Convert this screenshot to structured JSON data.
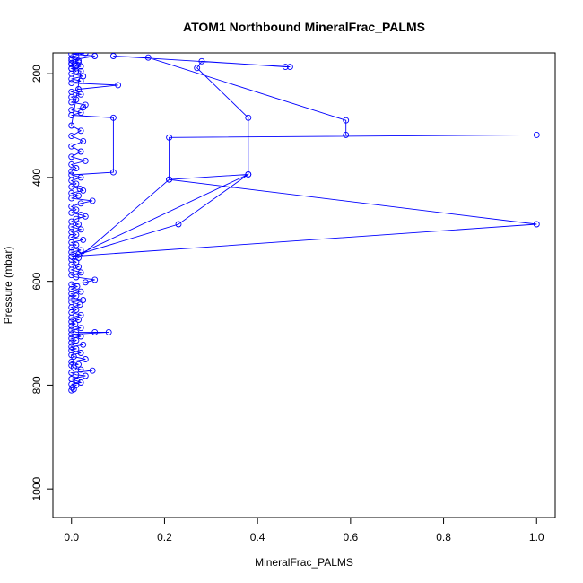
{
  "chart_data": {
    "type": "line",
    "title": "ATOM1 Northbound MineralFrac_PALMS",
    "xlabel": "MineralFrac_PALMS",
    "ylabel": "Pressure (mbar)",
    "xlim": [
      -0.04,
      1.04
    ],
    "ylim": [
      1055,
      160
    ],
    "y_reversed": true,
    "x_ticks": [
      0.0,
      0.2,
      0.4,
      0.6,
      0.8,
      1.0
    ],
    "x_tick_labels": [
      "0.0",
      "0.2",
      "0.4",
      "0.6",
      "0.8",
      "1.0"
    ],
    "y_ticks": [
      200,
      400,
      600,
      800,
      1000
    ],
    "y_tick_labels": [
      "200",
      "400",
      "600",
      "800",
      "1000"
    ],
    "grid": false,
    "marker": "open-circle",
    "color": "#0000ff",
    "series": [
      {
        "points": [
          [
            0.0,
            810
          ],
          [
            0.005,
            808
          ],
          [
            0.002,
            805
          ],
          [
            0.01,
            800
          ],
          [
            0.0,
            798
          ],
          [
            0.02,
            795
          ],
          [
            0.012,
            792
          ],
          [
            0.0,
            788
          ],
          [
            0.03,
            782
          ],
          [
            0.01,
            780
          ],
          [
            0.0,
            776
          ],
          [
            0.045,
            772
          ],
          [
            0.02,
            770
          ],
          [
            0.005,
            766
          ],
          [
            0.0,
            762
          ],
          [
            0.015,
            760
          ],
          [
            0.0,
            755
          ],
          [
            0.03,
            750
          ],
          [
            0.005,
            745
          ],
          [
            0.0,
            742
          ],
          [
            0.02,
            738
          ],
          [
            0.0,
            733
          ],
          [
            0.01,
            730
          ],
          [
            0.0,
            726
          ],
          [
            0.025,
            722
          ],
          [
            0.0,
            718
          ],
          [
            0.01,
            714
          ],
          [
            0.0,
            710
          ],
          [
            0.02,
            706
          ],
          [
            0.0,
            702
          ],
          [
            0.08,
            698
          ],
          [
            0.05,
            698
          ],
          [
            0.01,
            698
          ],
          [
            0.0,
            694
          ],
          [
            0.02,
            690
          ],
          [
            0.0,
            686
          ],
          [
            0.008,
            682
          ],
          [
            0.0,
            678
          ],
          [
            0.015,
            674
          ],
          [
            0.0,
            670
          ],
          [
            0.02,
            665
          ],
          [
            0.0,
            660
          ],
          [
            0.01,
            655
          ],
          [
            0.0,
            650
          ],
          [
            0.018,
            645
          ],
          [
            0.0,
            640
          ],
          [
            0.025,
            636
          ],
          [
            0.0,
            632
          ],
          [
            0.01,
            628
          ],
          [
            0.0,
            624
          ],
          [
            0.02,
            620
          ],
          [
            0.0,
            615
          ],
          [
            0.012,
            610
          ],
          [
            0.0,
            606
          ],
          [
            0.03,
            602
          ],
          [
            0.05,
            597
          ],
          [
            0.01,
            592
          ],
          [
            0.0,
            588
          ],
          [
            0.02,
            583
          ],
          [
            0.0,
            578
          ],
          [
            0.015,
            572
          ],
          [
            0.0,
            568
          ],
          [
            0.01,
            563
          ],
          [
            0.0,
            558
          ],
          [
            0.015,
            555
          ],
          [
            0.21,
            404
          ],
          [
            0.38,
            394
          ],
          [
            0.38,
            285
          ],
          [
            0.27,
            189
          ],
          [
            0.28,
            176
          ],
          [
            0.46,
            187
          ],
          [
            0.47,
            187
          ],
          [
            0.09,
            166
          ],
          [
            0.165,
            169
          ],
          [
            0.59,
            290
          ],
          [
            0.59,
            318
          ],
          [
            1.0,
            318
          ],
          [
            0.21,
            323
          ],
          [
            0.21,
            404
          ],
          [
            1.0,
            490
          ],
          [
            0.0,
            552
          ],
          [
            0.23,
            490
          ],
          [
            0.38,
            394
          ],
          [
            0.015,
            548
          ],
          [
            0.0,
            544
          ],
          [
            0.02,
            540
          ],
          [
            0.0,
            535
          ],
          [
            0.01,
            530
          ],
          [
            0.0,
            525
          ],
          [
            0.025,
            520
          ],
          [
            0.0,
            515
          ],
          [
            0.01,
            510
          ],
          [
            0.0,
            505
          ],
          [
            0.02,
            500
          ],
          [
            0.0,
            495
          ],
          [
            0.015,
            490
          ],
          [
            0.0,
            485
          ],
          [
            0.01,
            480
          ],
          [
            0.03,
            475
          ],
          [
            0.02,
            472
          ],
          [
            0.0,
            468
          ],
          [
            0.01,
            462
          ],
          [
            0.0,
            456
          ],
          [
            0.02,
            450
          ],
          [
            0.045,
            445
          ],
          [
            0.0,
            440
          ],
          [
            0.015,
            435
          ],
          [
            0.0,
            430
          ],
          [
            0.025,
            425
          ],
          [
            0.018,
            422
          ],
          [
            0.0,
            418
          ],
          [
            0.01,
            412
          ],
          [
            0.0,
            406
          ],
          [
            0.02,
            400
          ],
          [
            0.0,
            395
          ],
          [
            0.09,
            390
          ],
          [
            0.09,
            285
          ],
          [
            0.0,
            280
          ],
          [
            0.02,
            275
          ],
          [
            0.0,
            270
          ],
          [
            0.025,
            265
          ],
          [
            0.03,
            260
          ],
          [
            0.0,
            255
          ],
          [
            0.01,
            250
          ],
          [
            0.0,
            245
          ],
          [
            0.02,
            240
          ],
          [
            0.0,
            235
          ],
          [
            0.015,
            230
          ],
          [
            0.1,
            222
          ],
          [
            0.0,
            218
          ],
          [
            0.02,
            214
          ],
          [
            0.0,
            210
          ],
          [
            0.025,
            205
          ],
          [
            0.0,
            200
          ],
          [
            0.01,
            195
          ],
          [
            0.0,
            190
          ],
          [
            0.02,
            186
          ],
          [
            0.0,
            182
          ],
          [
            0.015,
            178
          ],
          [
            0.0,
            174
          ],
          [
            0.05,
            166
          ],
          [
            0.0,
            162
          ],
          [
            0.03,
            160
          ],
          [
            0.01,
            165
          ],
          [
            0.0,
            170
          ],
          [
            0.015,
            175
          ],
          [
            0.0,
            180
          ],
          [
            0.01,
            185
          ],
          [
            0.0,
            190
          ],
          [
            0.02,
            195
          ],
          [
            0.0,
            300
          ],
          [
            0.02,
            310
          ],
          [
            0.0,
            320
          ],
          [
            0.025,
            330
          ],
          [
            0.0,
            340
          ],
          [
            0.02,
            350
          ],
          [
            0.0,
            360
          ],
          [
            0.03,
            368
          ],
          [
            0.0,
            375
          ],
          [
            0.01,
            382
          ],
          [
            0.0,
            388
          ]
        ]
      }
    ]
  }
}
